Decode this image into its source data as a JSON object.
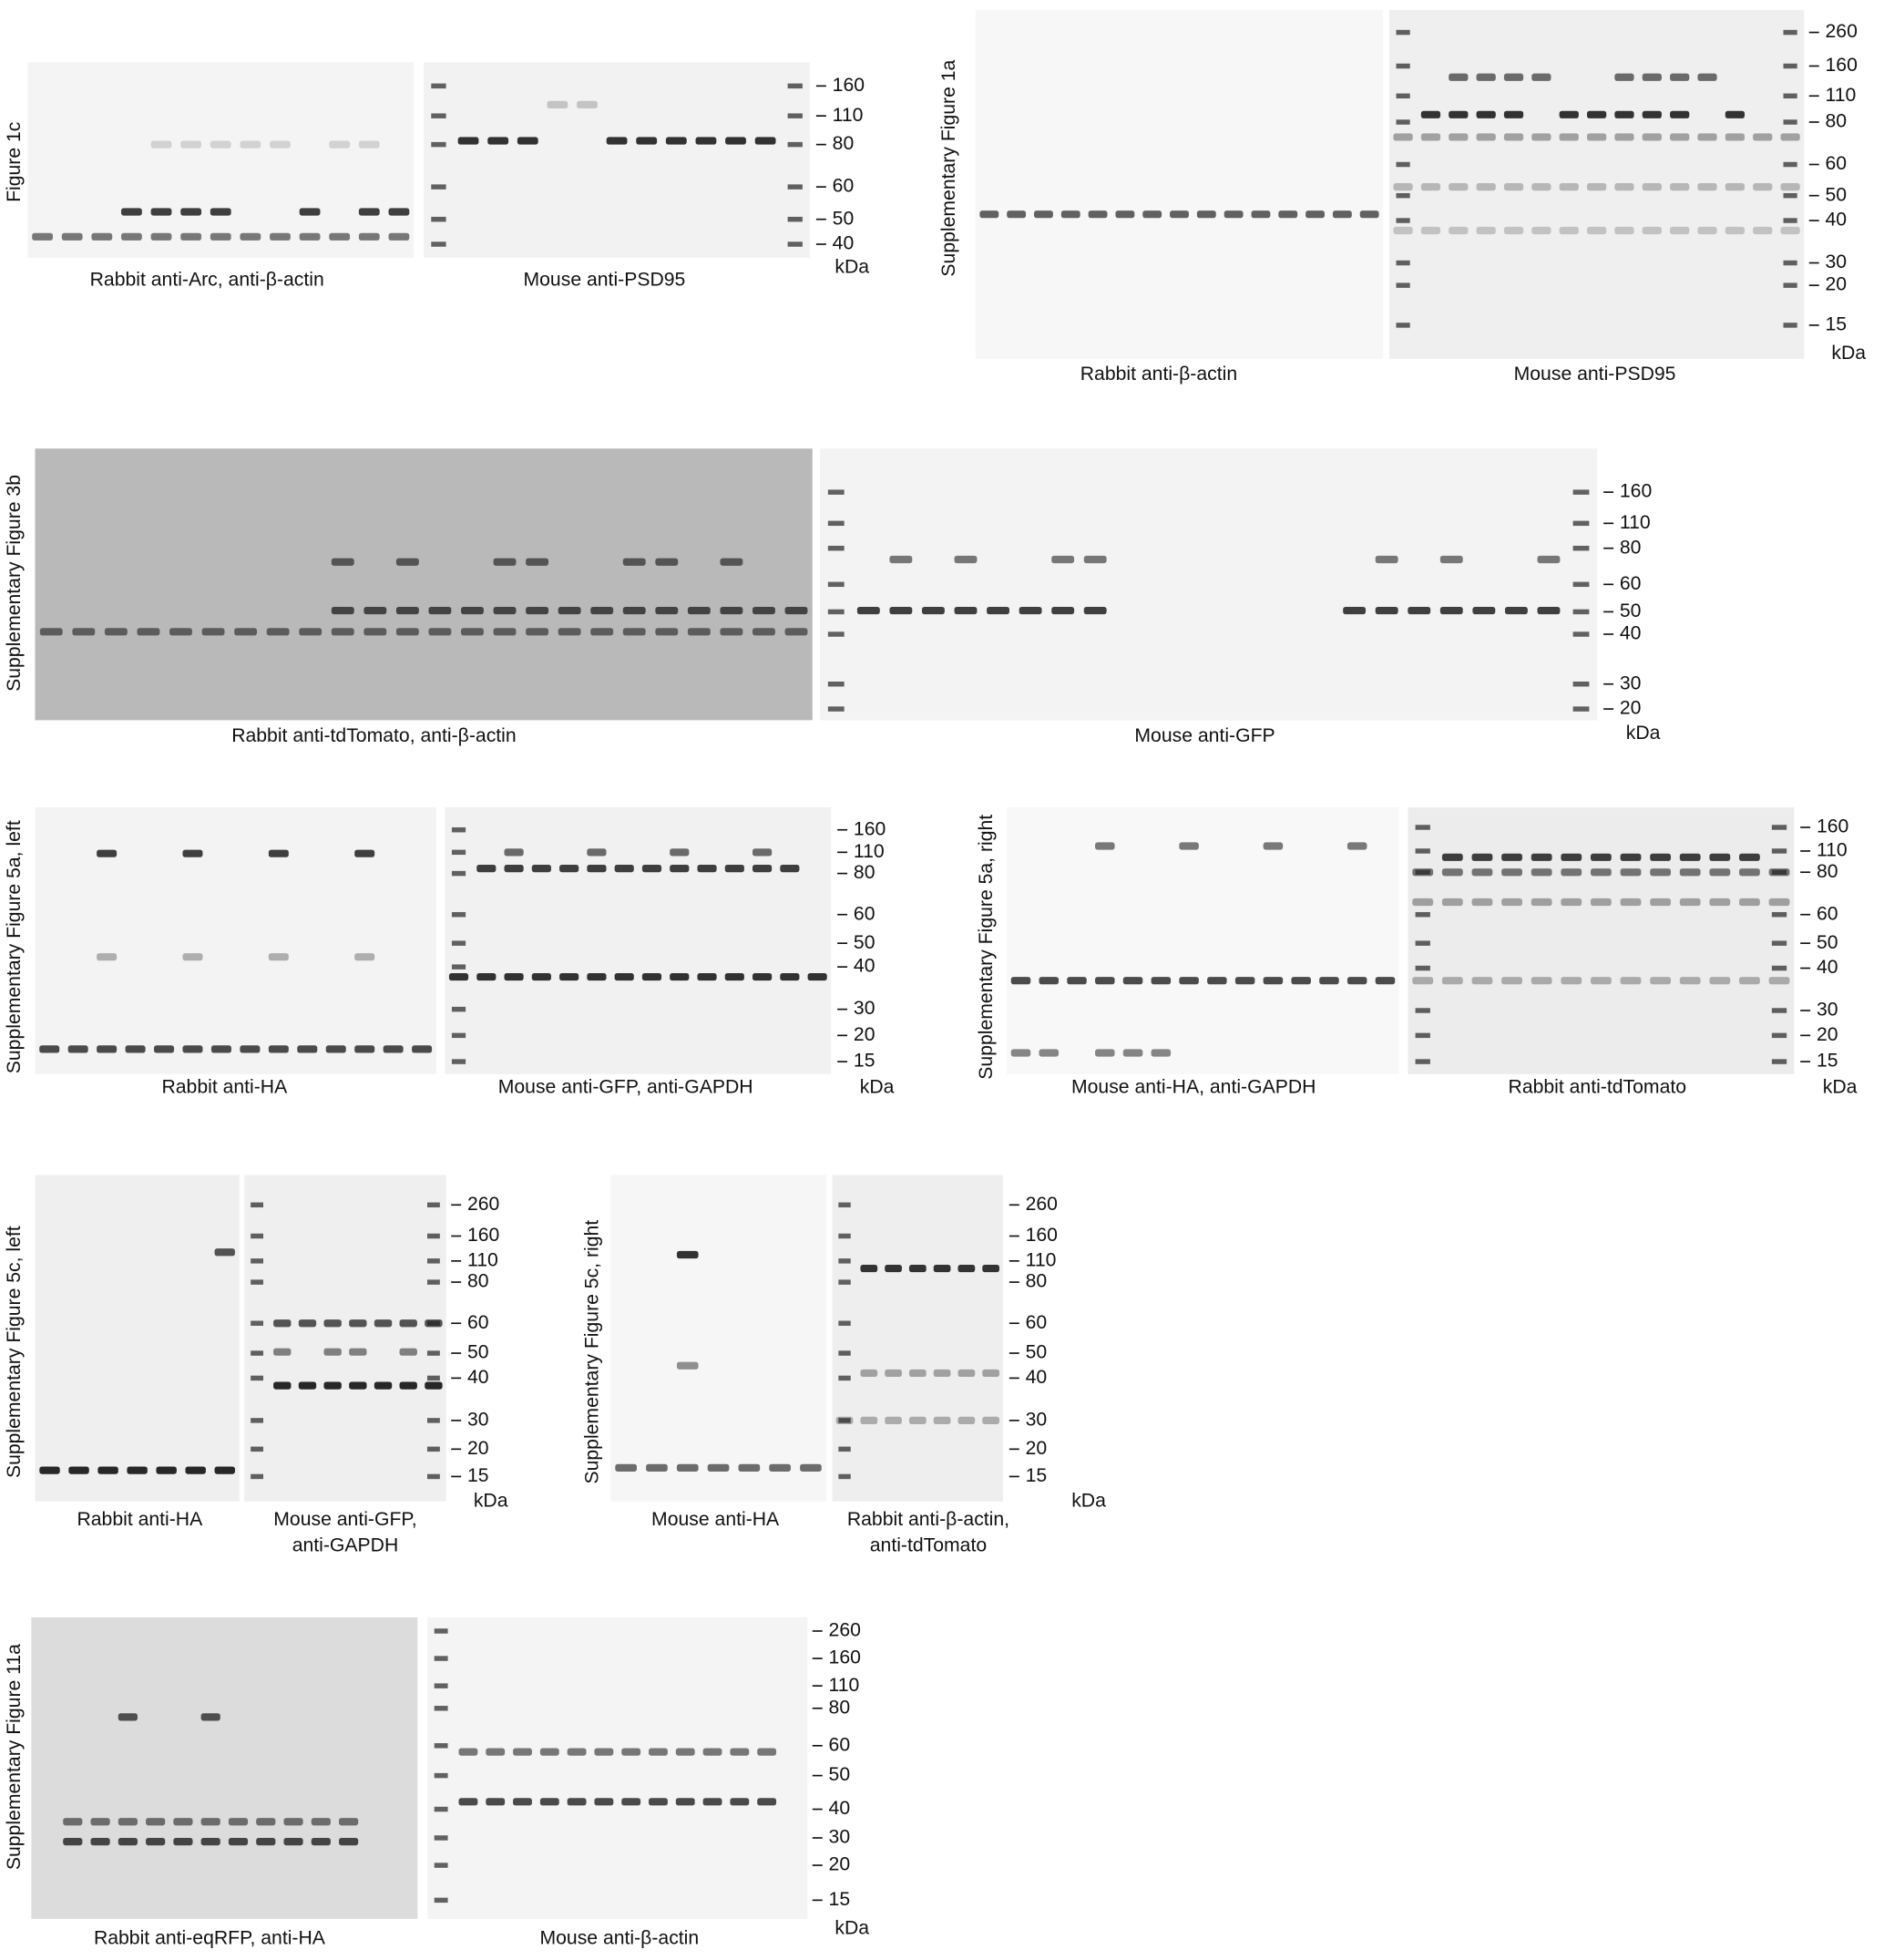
{
  "panels": [
    {
      "label": "Figure 1c",
      "blots": [
        {
          "caption": [
            "Rabbit anti-Arc, anti-β-actin"
          ]
        },
        {
          "caption": [
            "Mouse anti-PSD95"
          ]
        }
      ],
      "markers": [
        "160",
        "110",
        "80",
        "60",
        "50",
        "40"
      ],
      "unit": "kDa"
    },
    {
      "label": "Supplementary Figure 1a",
      "blots": [
        {
          "caption": [
            "Rabbit anti-β-actin"
          ]
        },
        {
          "caption": [
            "Mouse anti-PSD95"
          ]
        }
      ],
      "markers": [
        "260",
        "160",
        "110",
        "80",
        "60",
        "50",
        "40",
        "30",
        "20",
        "15"
      ],
      "unit": "kDa"
    },
    {
      "label": "Supplementary Figure 3b",
      "blots": [
        {
          "caption": [
            "Rabbit anti-tdTomato, anti-β-actin"
          ]
        },
        {
          "caption": [
            "Mouse anti-GFP"
          ]
        }
      ],
      "markers": [
        "160",
        "110",
        "80",
        "60",
        "50",
        "40",
        "30",
        "20"
      ],
      "unit": "kDa"
    },
    {
      "label": "Supplementary Figure 5a, left",
      "blots": [
        {
          "caption": [
            "Rabbit anti-HA"
          ]
        },
        {
          "caption": [
            "Mouse anti-GFP, anti-GAPDH"
          ]
        }
      ],
      "markers": [
        "160",
        "110",
        "80",
        "60",
        "50",
        "40",
        "30",
        "20",
        "15"
      ],
      "unit": "kDa"
    },
    {
      "label": "Supplementary Figure 5a, right",
      "blots": [
        {
          "caption": [
            "Mouse anti-HA, anti-GAPDH"
          ]
        },
        {
          "caption": [
            "Rabbit anti-tdTomato"
          ]
        }
      ],
      "markers": [
        "160",
        "110",
        "80",
        "60",
        "50",
        "40",
        "30",
        "20",
        "15"
      ],
      "unit": "kDa"
    },
    {
      "label": "Supplementary Figure 5c, left",
      "blots": [
        {
          "caption": [
            "Rabbit anti-HA"
          ]
        },
        {
          "caption": [
            "Mouse anti-GFP,",
            "anti-GAPDH"
          ]
        }
      ],
      "markers": [
        "260",
        "160",
        "110",
        "80",
        "60",
        "50",
        "40",
        "30",
        "20",
        "15"
      ],
      "unit": "kDa"
    },
    {
      "label": "Supplementary Figure 5c, right",
      "blots": [
        {
          "caption": [
            "Mouse anti-HA"
          ]
        },
        {
          "caption": [
            "Rabbit anti-β-actin,",
            "anti-tdTomato"
          ]
        }
      ],
      "markers": [
        "260",
        "160",
        "110",
        "80",
        "60",
        "50",
        "40",
        "30",
        "20",
        "15"
      ],
      "unit": "kDa"
    },
    {
      "label": "Supplementary Figure 11a",
      "blots": [
        {
          "caption": [
            "Rabbit anti-eqRFP, anti-HA"
          ]
        },
        {
          "caption": [
            "Mouse anti-β-actin"
          ]
        }
      ],
      "markers": [
        "260",
        "160",
        "110",
        "80",
        "60",
        "50",
        "40",
        "30",
        "20",
        "15"
      ],
      "unit": "kDa"
    }
  ]
}
